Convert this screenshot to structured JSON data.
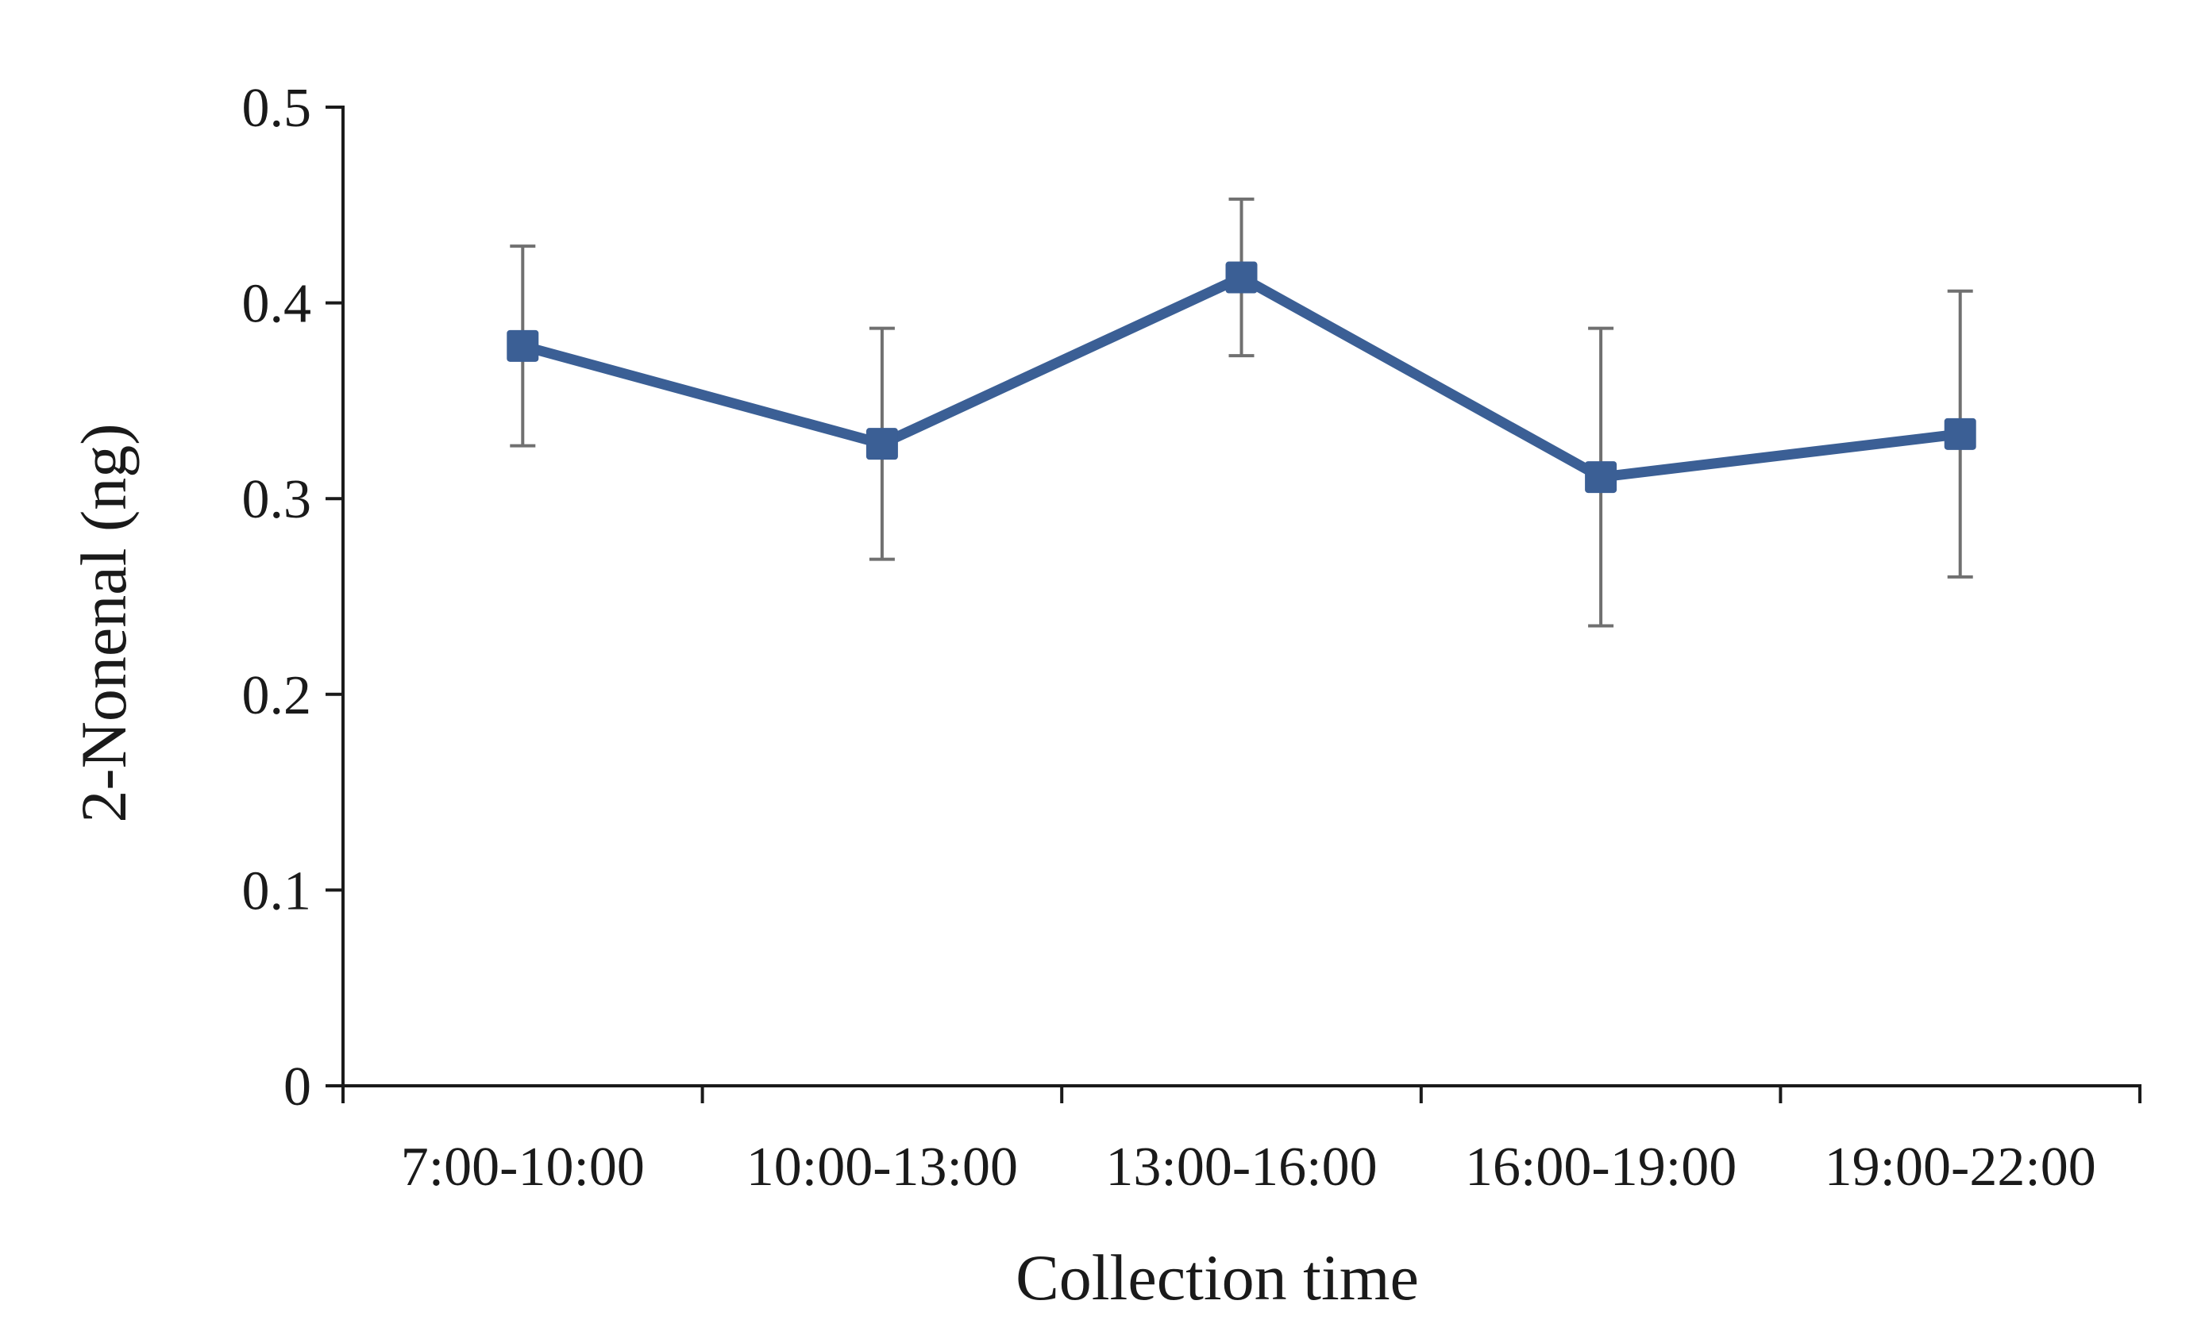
{
  "chart_data": {
    "type": "line",
    "title": "",
    "xlabel": "Collection time",
    "ylabel": "2-Nonenal (ng)",
    "categories": [
      "7:00-10:00",
      "10:00-13:00",
      "13:00-16:00",
      "16:00-19:00",
      "19:00-22:00"
    ],
    "series": [
      {
        "values": [
          0.378,
          0.328,
          0.413,
          0.311,
          0.333
        ],
        "errors": [
          0.051,
          0.059,
          0.04,
          0.076,
          0.073
        ],
        "marker": "square"
      }
    ],
    "ylim": [
      0,
      0.5
    ],
    "yticks": [
      "0",
      "0.1",
      "0.2",
      "0.3",
      "0.4",
      "0.5"
    ],
    "grid": false,
    "legend": "none"
  },
  "colors": {
    "series": "#3b5f95",
    "error_bars": "#707070",
    "axis": "#1a1a1a"
  }
}
